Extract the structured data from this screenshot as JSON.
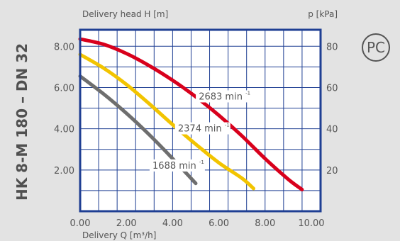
{
  "side_title": "HK 8-M 180 – DN 32",
  "certification_mark": "PC",
  "colors": {
    "background": "#e3e3e3",
    "plot_background": "#ffffff",
    "frame": "#1f3f93",
    "grid": "#1f3f93",
    "text": "#555555"
  },
  "chart_data": {
    "type": "line",
    "title": "",
    "xlabel": "Delivery Q [m³/h]",
    "ylabel": "Delivery head H [m]",
    "y2label": "p [kPa]",
    "xlim": [
      0,
      10.4
    ],
    "ylim": [
      0,
      8.8
    ],
    "y2lim": [
      0,
      88
    ],
    "grid": true,
    "x_ticks": [
      "0.00",
      "2.00",
      "4.00",
      "6.00",
      "8.00",
      "10.00"
    ],
    "y_ticks": [
      "2.00",
      "4.00",
      "6.00",
      "8.00"
    ],
    "y2_ticks": [
      "20",
      "40",
      "60",
      "80"
    ],
    "series": [
      {
        "name": "2683 min⁻¹",
        "label_text": "2683 min",
        "label_sup": "-1",
        "color": "#d8001c",
        "label_at": [
          6.2,
          5.45
        ],
        "x": [
          0,
          1,
          2,
          3,
          4,
          5,
          6,
          7,
          8,
          9,
          9.6
        ],
        "y": [
          8.35,
          8.1,
          7.65,
          7.05,
          6.35,
          5.55,
          4.65,
          3.65,
          2.55,
          1.55,
          1.05
        ]
      },
      {
        "name": "2374 min⁻¹",
        "label_text": "2374 min",
        "label_sup": "-1",
        "color": "#f2c400",
        "label_at": [
          5.3,
          3.9
        ],
        "x": [
          0,
          1,
          2,
          3,
          4,
          5,
          6,
          7,
          7.5
        ],
        "y": [
          7.6,
          6.95,
          6.15,
          5.2,
          4.2,
          3.25,
          2.35,
          1.6,
          1.1
        ]
      },
      {
        "name": "1688 min⁻¹",
        "label_text": "1688 min",
        "label_sup": "-1",
        "color": "#6e6e6e",
        "label_at": [
          4.2,
          2.1
        ],
        "x": [
          0,
          1,
          2,
          3,
          4,
          5
        ],
        "y": [
          6.55,
          5.7,
          4.75,
          3.7,
          2.55,
          1.35
        ]
      }
    ]
  }
}
